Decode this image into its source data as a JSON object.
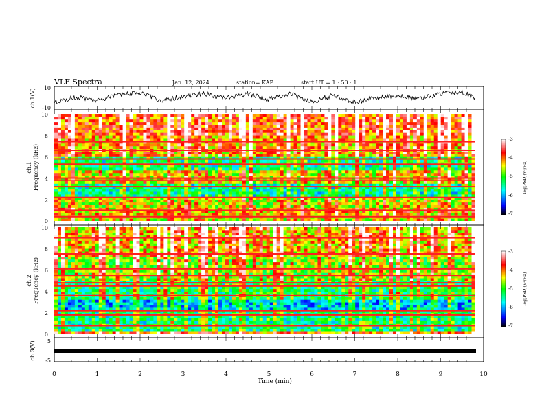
{
  "header": {
    "title": "VLF Spectra",
    "date": "Jan. 12, 2024",
    "station": "station= KAP",
    "start": "start  UT =   1 : 50 : 1"
  },
  "panels": {
    "ch1_wave": {
      "ylabel": "ch.1(V)",
      "ticks": [
        "10",
        "-10"
      ]
    },
    "ch1_spec": {
      "ylabel": "ch.1",
      "ylabel2": "Frequency  (kHz)",
      "ticks": [
        "10",
        "8",
        "6",
        "4",
        "2",
        "0"
      ]
    },
    "ch2_spec": {
      "ylabel": "ch.2",
      "ylabel2": "Frequency  (kHz)",
      "ticks": [
        "10",
        "8",
        "6",
        "4",
        "2",
        "0"
      ]
    },
    "ch3_wave": {
      "ylabel": "ch.3(V)",
      "ticks": [
        "5",
        "-5"
      ]
    }
  },
  "xaxis": {
    "label": "Time  (min)",
    "ticks": [
      "0",
      "1",
      "2",
      "3",
      "4",
      "5",
      "6",
      "7",
      "8",
      "9",
      "10"
    ]
  },
  "colorbar": {
    "label": "log(PSD)(V²/Hz)",
    "ticks": [
      "-3",
      "-4",
      "-5",
      "-6",
      "-7"
    ],
    "colors": [
      "#000000",
      "#0000ff",
      "#00ffff",
      "#00ff00",
      "#ffff00",
      "#ff0000",
      "#ffffff"
    ]
  },
  "chart_data": [
    {
      "type": "line",
      "name": "ch.1 waveform",
      "xlabel": "Time (min)",
      "ylabel": "ch.1(V)",
      "xlim": [
        0,
        10
      ],
      "ylim": [
        -10,
        10
      ],
      "x": [
        0,
        0.5,
        1,
        1.5,
        2,
        2.5,
        3,
        3.5,
        4,
        4.5,
        5,
        5.5,
        6,
        6.5,
        7,
        7.5,
        8,
        8.5,
        9,
        9.5,
        9.8
      ],
      "y": [
        -4,
        1,
        -2,
        3,
        5,
        -3,
        2,
        4,
        0,
        4,
        -1,
        4,
        -4,
        3,
        -4,
        1,
        2,
        -1,
        4,
        6,
        0
      ]
    },
    {
      "type": "heatmap",
      "name": "ch.1 spectrogram",
      "xlabel": "Time (min)",
      "ylabel": "Frequency (kHz)",
      "xlim": [
        0,
        9.8
      ],
      "ylim": [
        0,
        10
      ],
      "clim": [
        -7,
        -3
      ],
      "bands": [
        {
          "f": [
            0,
            0.4
          ],
          "level": -4.5
        },
        {
          "f": [
            0.4,
            1.2
          ],
          "level": -4.3
        },
        {
          "f": [
            1.2,
            2.2
          ],
          "level": -4.6
        },
        {
          "f": [
            2.2,
            3.6
          ],
          "level": -5.5
        },
        {
          "f": [
            3.6,
            4.8
          ],
          "level": -4.5
        },
        {
          "f": [
            4.8,
            6.0
          ],
          "level": -5.4
        },
        {
          "f": [
            6.0,
            8.0
          ],
          "level": -4.2
        },
        {
          "f": [
            8.0,
            10.0
          ],
          "level": -3.9
        }
      ],
      "lines_khz": [
        0.4,
        1.0,
        2.2,
        3.2,
        3.8,
        4.0,
        5.3,
        5.8,
        6.6,
        7.4
      ]
    },
    {
      "type": "heatmap",
      "name": "ch.2 spectrogram",
      "xlabel": "Time (min)",
      "ylabel": "Frequency (kHz)",
      "xlim": [
        0,
        9.8
      ],
      "ylim": [
        0,
        10
      ],
      "clim": [
        -7,
        -3
      ],
      "bands": [
        {
          "f": [
            0,
            0.3
          ],
          "level": -4.0
        },
        {
          "f": [
            0.3,
            2.2
          ],
          "level": -5.4
        },
        {
          "f": [
            2.2,
            3.2
          ],
          "level": -5.9
        },
        {
          "f": [
            3.2,
            5.0
          ],
          "level": -5.3
        },
        {
          "f": [
            5.0,
            7.2
          ],
          "level": -4.8
        },
        {
          "f": [
            7.2,
            10.0
          ],
          "level": -4.3
        }
      ],
      "lines_khz": [
        0.8,
        1.8,
        2.2,
        3.6,
        4.5,
        4.8,
        5.5,
        6.1,
        7.5,
        9.0
      ]
    },
    {
      "type": "line",
      "name": "ch.3 waveform",
      "xlabel": "Time (min)",
      "ylabel": "ch.3(V)",
      "xlim": [
        0,
        10
      ],
      "ylim": [
        -5,
        5
      ],
      "x": [
        0,
        9.8
      ],
      "y": [
        0,
        0
      ]
    }
  ]
}
